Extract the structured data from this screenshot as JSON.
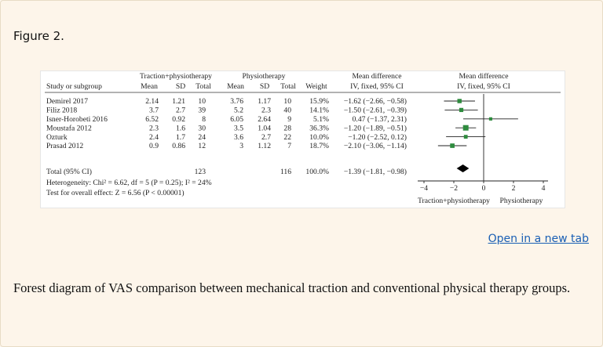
{
  "figure": {
    "title": "Figure 2.",
    "open_link": "Open in a new tab",
    "caption": "Forest diagram of VAS comparison between mechanical traction and conventional physical therapy groups."
  },
  "chart_data": {
    "type": "forest",
    "headers": {
      "group1": "Traction+physiotherapy",
      "group2": "Physiotherapy",
      "study": "Study or subgroup",
      "mean": "Mean",
      "sd": "SD",
      "total": "Total",
      "weight": "Weight",
      "md_title": "Mean difference",
      "md_method": "IV, fixed, 95% CI"
    },
    "studies": [
      {
        "name": "Demirel 2017",
        "mean1": "2.14",
        "sd1": "1.21",
        "n1": "10",
        "mean2": "3.76",
        "sd2": "1.17",
        "n2": "10",
        "weight": "15.9%",
        "ci_text": "−1.62 (−2.66, −0.58)",
        "md": -1.62,
        "lo": -2.66,
        "hi": -0.58,
        "w": 15.9
      },
      {
        "name": "Filiz 2018",
        "mean1": "3.7",
        "sd1": "2.7",
        "n1": "39",
        "mean2": "5.2",
        "sd2": "2.3",
        "n2": "40",
        "weight": "14.1%",
        "ci_text": "−1.50 (−2.61, −0.39)",
        "md": -1.5,
        "lo": -2.61,
        "hi": -0.39,
        "w": 14.1
      },
      {
        "name": "Isner-Horobeti 2016",
        "mean1": "6.52",
        "sd1": "0.92",
        "n1": "8",
        "mean2": "6.05",
        "sd2": "2.64",
        "n2": "9",
        "weight": "5.1%",
        "ci_text": "0.47 (−1.37, 2.31)",
        "md": 0.47,
        "lo": -1.37,
        "hi": 2.31,
        "w": 5.1
      },
      {
        "name": "Moustafa 2012",
        "mean1": "2.3",
        "sd1": "1.6",
        "n1": "30",
        "mean2": "3.5",
        "sd2": "1.04",
        "n2": "28",
        "weight": "36.3%",
        "ci_text": "−1.20 (−1.89, −0.51)",
        "md": -1.2,
        "lo": -1.89,
        "hi": -0.51,
        "w": 36.3
      },
      {
        "name": "Ozturk",
        "mean1": "2.4",
        "sd1": "1.7",
        "n1": "24",
        "mean2": "3.6",
        "sd2": "2.7",
        "n2": "22",
        "weight": "10.0%",
        "ci_text": "−1.20 (−2.52, 0.12)",
        "md": -1.2,
        "lo": -2.52,
        "hi": 0.12,
        "w": 10.0
      },
      {
        "name": "Prasad 2012",
        "mean1": "0.9",
        "sd1": "0.86",
        "n1": "12",
        "mean2": "3",
        "sd2": "1.12",
        "n2": "7",
        "weight": "18.7%",
        "ci_text": "−2.10 (−3.06, −1.14)",
        "md": -2.1,
        "lo": -3.06,
        "hi": -1.14,
        "w": 18.7
      }
    ],
    "total": {
      "name": "Total (95% CI)",
      "n1": "123",
      "n2": "116",
      "weight": "100.0%",
      "ci_text": "−1.39 (−1.81, −0.98)",
      "md": -1.39,
      "lo": -1.81,
      "hi": -0.98
    },
    "heterogeneity": "Heterogeneity: Chi² = 6.62, df = 5 (P = 0.25); I² = 24%",
    "overall_effect": "Test for overall effect: Z = 6.56 (P < 0.00001)",
    "xlim": [
      -4,
      4
    ],
    "ticks": [
      -4,
      -2,
      0,
      2,
      4
    ],
    "tick_labels": [
      "−4",
      "−2",
      "0",
      "2",
      "4"
    ],
    "favours_left": "Traction+physiotherapy",
    "favours_right": "Physiotherapy",
    "marker_color": "#2e8b3e"
  }
}
